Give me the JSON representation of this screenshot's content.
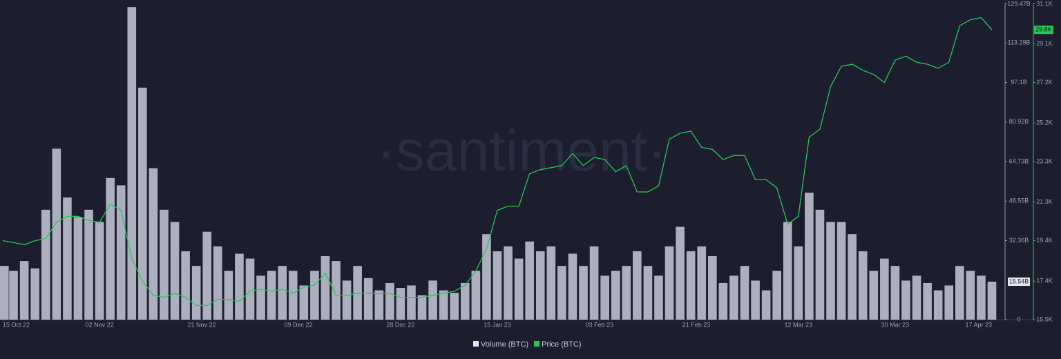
{
  "chart_data": {
    "type": "bar-line",
    "watermark": "·santiment·",
    "x": [
      "2022-10-15",
      "2022-10-17",
      "2022-10-19",
      "2022-10-21",
      "2022-10-23",
      "2022-10-25",
      "2022-10-27",
      "2022-10-29",
      "2022-10-31",
      "2022-11-02",
      "2022-11-04",
      "2022-11-06",
      "2022-11-08",
      "2022-11-10",
      "2022-11-12",
      "2022-11-14",
      "2022-11-16",
      "2022-11-18",
      "2022-11-20",
      "2022-11-22",
      "2022-11-24",
      "2022-11-26",
      "2022-11-28",
      "2022-11-30",
      "2022-12-02",
      "2022-12-04",
      "2022-12-06",
      "2022-12-08",
      "2022-12-10",
      "2022-12-12",
      "2022-12-14",
      "2022-12-16",
      "2022-12-18",
      "2022-12-20",
      "2022-12-22",
      "2022-12-24",
      "2022-12-26",
      "2022-12-28",
      "2022-12-30",
      "2023-01-01",
      "2023-01-03",
      "2023-01-05",
      "2023-01-07",
      "2023-01-09",
      "2023-01-11",
      "2023-01-13",
      "2023-01-15",
      "2023-01-17",
      "2023-01-19",
      "2023-01-21",
      "2023-01-23",
      "2023-01-25",
      "2023-01-27",
      "2023-01-29",
      "2023-01-31",
      "2023-02-02",
      "2023-02-04",
      "2023-02-06",
      "2023-02-08",
      "2023-02-10",
      "2023-02-12",
      "2023-02-14",
      "2023-02-16",
      "2023-02-18",
      "2023-02-20",
      "2023-02-22",
      "2023-02-24",
      "2023-02-26",
      "2023-02-28",
      "2023-03-02",
      "2023-03-04",
      "2023-03-06",
      "2023-03-08",
      "2023-03-10",
      "2023-03-12",
      "2023-03-14",
      "2023-03-16",
      "2023-03-18",
      "2023-03-20",
      "2023-03-22",
      "2023-03-24",
      "2023-03-26",
      "2023-03-28",
      "2023-03-30",
      "2023-04-01",
      "2023-04-03",
      "2023-04-05",
      "2023-04-07",
      "2023-04-09",
      "2023-04-11",
      "2023-04-13",
      "2023-04-15",
      "2023-04-17"
    ],
    "xlim": [
      "2022-10-15",
      "2023-04-17"
    ],
    "xticks": [
      {
        "value": "2022-10-15",
        "label": "15 Oct 22"
      },
      {
        "value": "2022-11-02",
        "label": "02 Nov 22"
      },
      {
        "value": "2022-11-21",
        "label": "21 Nov 22"
      },
      {
        "value": "2022-12-09",
        "label": "09 Dec 22"
      },
      {
        "value": "2022-12-28",
        "label": "28 Dec 22"
      },
      {
        "value": "2023-01-15",
        "label": "15 Jan 23"
      },
      {
        "value": "2023-02-03",
        "label": "03 Feb 23"
      },
      {
        "value": "2023-02-21",
        "label": "21 Feb 23"
      },
      {
        "value": "2023-03-12",
        "label": "12 Mar 23"
      },
      {
        "value": "2023-03-30",
        "label": "30 Mar 23"
      },
      {
        "value": "2023-04-17",
        "label": "17 Apr 23"
      }
    ],
    "ylim": [
      0,
      129.47
    ],
    "yticks": [
      0,
      {
        "value": 32.36,
        "label": "32.36B"
      },
      {
        "value": 48.55,
        "label": "48.55B"
      },
      {
        "value": 64.73,
        "label": "64.73B"
      },
      {
        "value": 80.92,
        "label": "80.92B"
      },
      {
        "value": 97.1,
        "label": "97.1B"
      },
      {
        "value": 113.29,
        "label": "113.29B"
      },
      {
        "value": 129.47,
        "label": "129.47B"
      }
    ],
    "y2lim": [
      15.5,
      31.1
    ],
    "y2ticks": [
      {
        "value": 15.5,
        "label": "15.5K"
      },
      {
        "value": 17.4,
        "label": "17.4K"
      },
      {
        "value": 19.4,
        "label": "19.4K"
      },
      {
        "value": 21.3,
        "label": "21.3K"
      },
      {
        "value": 23.3,
        "label": "23.3K"
      },
      {
        "value": 25.2,
        "label": "25.2K"
      },
      {
        "value": 27.2,
        "label": "27.2K"
      },
      {
        "value": 29.1,
        "label": "29.1K"
      },
      {
        "value": 31.1,
        "label": "31.1K"
      }
    ],
    "series": [
      {
        "name": "Volume (BTC)",
        "type": "bar",
        "color": "#b9bccb",
        "current_value_label": "15.54B",
        "values": [
          22,
          20,
          24,
          21,
          45,
          70,
          50,
          42,
          45,
          40,
          58,
          55,
          128,
          95,
          62,
          45,
          40,
          28,
          22,
          36,
          30,
          20,
          27,
          25,
          18,
          20,
          22,
          20,
          14,
          20,
          26,
          24,
          16,
          22,
          17,
          12,
          15,
          13,
          14,
          10,
          16,
          12,
          11,
          15,
          20,
          35,
          28,
          30,
          25,
          32,
          28,
          30,
          22,
          27,
          22,
          30,
          18,
          20,
          22,
          28,
          22,
          18,
          30,
          38,
          28,
          30,
          26,
          15,
          18,
          22,
          16,
          12,
          20,
          40,
          30,
          52,
          45,
          40,
          40,
          35,
          28,
          20,
          25,
          22,
          16,
          18,
          15,
          12,
          14,
          22,
          20,
          18,
          15.54
        ]
      },
      {
        "name": "Price (BTC)",
        "type": "line",
        "axis": "y2",
        "color": "#26c953",
        "current_value_label": "29.8K",
        "values": [
          19.4,
          19.3,
          19.2,
          19.4,
          19.5,
          20.3,
          20.6,
          20.6,
          20.4,
          20.3,
          21.2,
          20.9,
          18.5,
          17.4,
          16.7,
          16.6,
          16.8,
          16.6,
          16.2,
          16.2,
          16.5,
          16.5,
          16.4,
          16.9,
          17.0,
          16.9,
          17.0,
          16.8,
          17.1,
          17.2,
          17.8,
          16.7,
          16.7,
          16.8,
          16.8,
          16.8,
          16.8,
          16.6,
          16.6,
          16.6,
          16.7,
          16.8,
          16.9,
          17.2,
          17.9,
          19.0,
          20.9,
          21.1,
          21.1,
          22.7,
          22.9,
          23.0,
          23.1,
          23.7,
          23.1,
          23.5,
          23.4,
          22.8,
          23.1,
          21.8,
          21.8,
          22.1,
          24.4,
          24.7,
          24.8,
          24.0,
          23.9,
          23.4,
          23.6,
          23.6,
          22.4,
          22.4,
          22.0,
          20.2,
          20.6,
          24.5,
          24.9,
          27.0,
          28.0,
          28.1,
          27.8,
          27.6,
          27.2,
          28.3,
          28.5,
          28.2,
          28.1,
          27.9,
          28.2,
          30.0,
          30.3,
          30.4,
          29.8
        ]
      }
    ]
  }
}
